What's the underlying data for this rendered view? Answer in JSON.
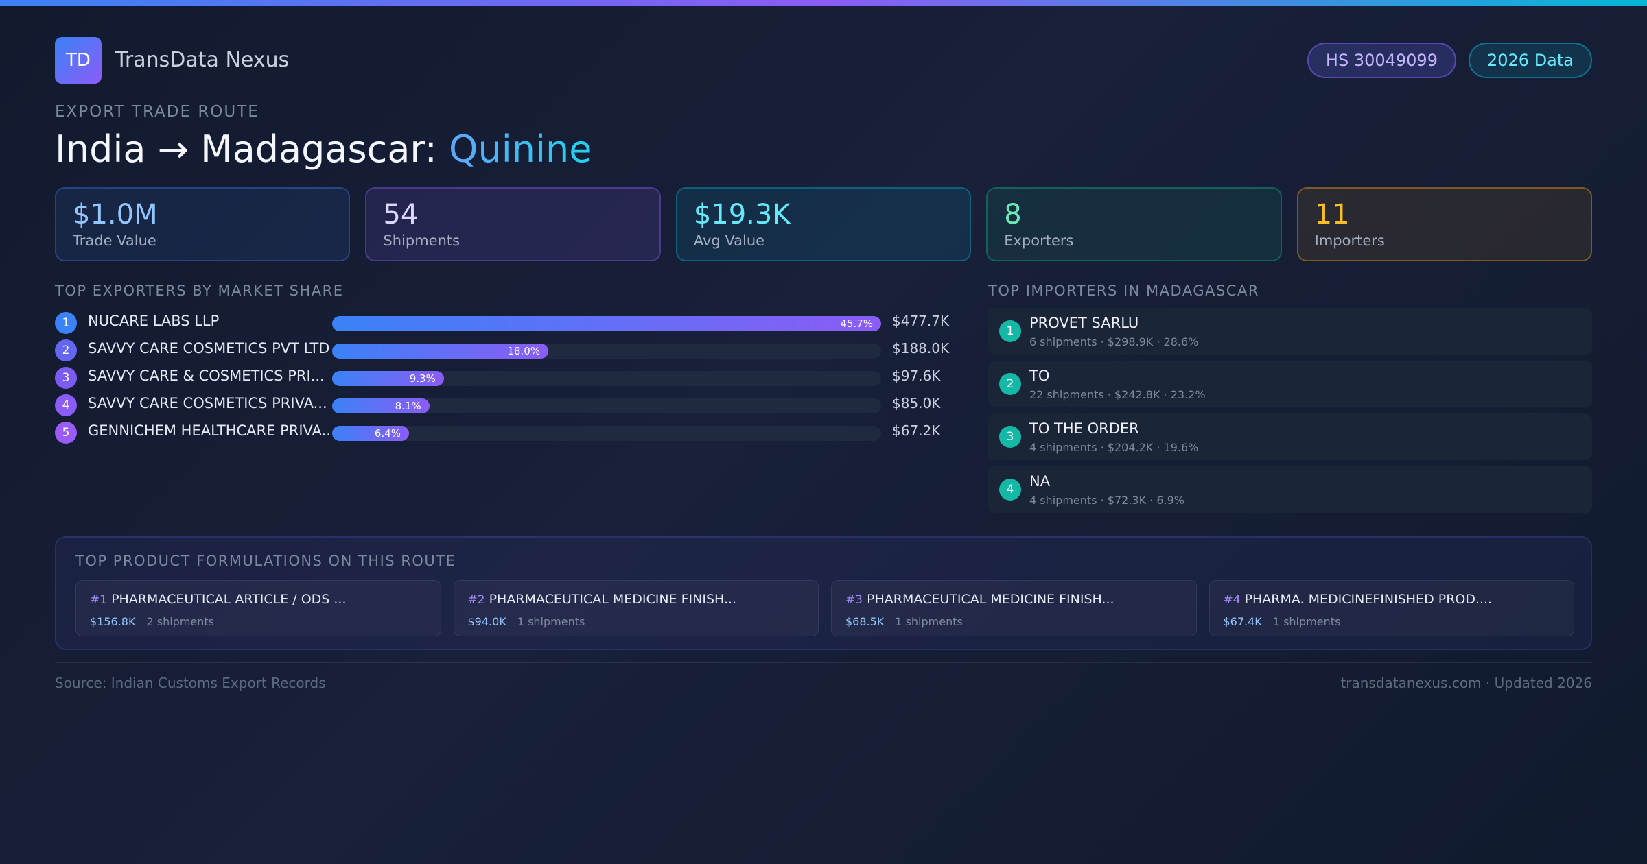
{
  "header": {
    "logo_text": "TD",
    "brand": "TransData Nexus",
    "hs_badge": "HS 30049099",
    "year_badge": "2026 Data"
  },
  "route": {
    "eyebrow": "EXPORT TRADE ROUTE",
    "title_prefix": "India → Madagascar: ",
    "product": "Quinine"
  },
  "stats": [
    {
      "value": "$1.0M",
      "label": "Trade Value"
    },
    {
      "value": "54",
      "label": "Shipments"
    },
    {
      "value": "$19.3K",
      "label": "Avg Value"
    },
    {
      "value": "8",
      "label": "Exporters"
    },
    {
      "value": "11",
      "label": "Importers"
    }
  ],
  "exporters": {
    "heading": "TOP EXPORTERS BY MARKET SHARE",
    "items": [
      {
        "rank": "1",
        "name": "NUCARE LABS LLP",
        "share": 45.7,
        "share_label": "45.7%",
        "value": "$477.7K",
        "color": "#3b82f6"
      },
      {
        "rank": "2",
        "name": "SAVVY CARE COSMETICS PVT LTD",
        "share": 18.0,
        "share_label": "18.0%",
        "value": "$188.0K",
        "color": "#6366f1"
      },
      {
        "rank": "3",
        "name": "SAVVY CARE & COSMETICS PRI...",
        "share": 9.3,
        "share_label": "9.3%",
        "value": "$97.6K",
        "color": "#7c5cf0"
      },
      {
        "rank": "4",
        "name": "SAVVY CARE COSMETICS PRIVA...",
        "share": 8.1,
        "share_label": "8.1%",
        "value": "$85.0K",
        "color": "#8b5cf6"
      },
      {
        "rank": "5",
        "name": "GENNICHEM HEALTHCARE PRIVA...",
        "share": 6.4,
        "share_label": "6.4%",
        "value": "$67.2K",
        "color": "#9b5cf6"
      }
    ]
  },
  "importers": {
    "heading": "TOP IMPORTERS IN MADAGASCAR",
    "items": [
      {
        "rank": "1",
        "name": "PROVET SARLU",
        "meta": "6 shipments · $298.9K · 28.6%"
      },
      {
        "rank": "2",
        "name": "TO",
        "meta": "22 shipments · $242.8K · 23.2%"
      },
      {
        "rank": "3",
        "name": "TO THE ORDER",
        "meta": "4 shipments · $204.2K · 19.6%"
      },
      {
        "rank": "4",
        "name": "NA",
        "meta": "4 shipments · $72.3K · 6.9%"
      }
    ]
  },
  "formulations": {
    "heading": "TOP PRODUCT FORMULATIONS ON THIS ROUTE",
    "items": [
      {
        "rank": "#1",
        "name": "PHARMACEUTICAL ARTICLE / ODS ...",
        "value": "$156.8K",
        "shipments": "2 shipments"
      },
      {
        "rank": "#2",
        "name": "PHARMACEUTICAL MEDICINE FINISH...",
        "value": "$94.0K",
        "shipments": "1 shipments"
      },
      {
        "rank": "#3",
        "name": "PHARMACEUTICAL MEDICINE FINISH...",
        "value": "$68.5K",
        "shipments": "1 shipments"
      },
      {
        "rank": "#4",
        "name": "PHARMA. MEDICINEFINISHED PROD....",
        "value": "$67.4K",
        "shipments": "1 shipments"
      }
    ]
  },
  "footer": {
    "source": "Source: Indian Customs Export Records",
    "site": "transdatanexus.com · Updated 2026"
  }
}
